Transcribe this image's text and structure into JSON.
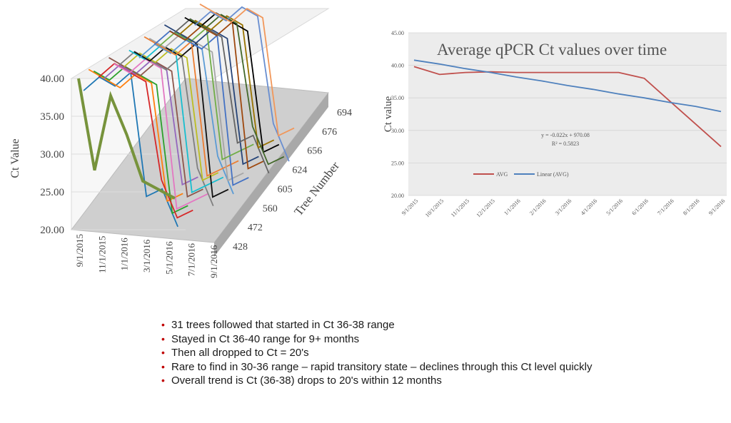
{
  "chart_data": [
    {
      "type": "line",
      "title": "",
      "ylabel": "Ct Value",
      "zlabel": "Tree Number",
      "ylim": [
        20,
        40
      ],
      "y_ticks": [
        "40.00",
        "35.00",
        "30.00",
        "25.00",
        "20.00"
      ],
      "x_ticks": [
        "9/1/2015",
        "11/1/2015",
        "1/1/2016",
        "3/1/2016",
        "5/1/2016",
        "7/1/2016",
        "9/1/2016"
      ],
      "tree_ticks": [
        "428",
        "472",
        "560",
        "605",
        "624",
        "656",
        "676",
        "694"
      ],
      "series": [
        {
          "values": [
            40,
            28,
            38,
            33,
            27,
            26,
            25
          ]
        }
      ],
      "series_colors": [
        "#1f77b4",
        "#ff7f0e",
        "#2ca02c",
        "#d62728",
        "#9467bd",
        "#8c564b",
        "#e377c2",
        "#7f7f7f",
        "#bcbd22",
        "#17becf",
        "#111111",
        "#5b9bd5",
        "#ed7d31",
        "#a5a5a5",
        "#4472c4",
        "#70ad47",
        "#264478",
        "#9e480e",
        "#636363",
        "#997300",
        "#000000",
        "#43682b",
        "#698ed0",
        "#f1975a"
      ]
    },
    {
      "type": "line",
      "title": "Average qPCR Ct values over time",
      "ylabel": "Ct value",
      "ylim": [
        20,
        45
      ],
      "y_ticks": [
        "45.00",
        "40.00",
        "35.00",
        "30.00",
        "25.00",
        "20.00"
      ],
      "categories": [
        "9/1/2015",
        "10/1/2015",
        "11/1/2015",
        "12/1/2015",
        "1/1/2016",
        "2/1/2016",
        "3/1/2016",
        "4/1/2016",
        "5/1/2016",
        "6/1/2016",
        "7/1/2016",
        "8/1/2016",
        "9/1/2016"
      ],
      "series": [
        {
          "name": "AVG",
          "color": "#c0504d",
          "values": [
            39.8,
            38.6,
            38.9,
            39.0,
            38.9,
            38.9,
            38.9,
            38.9,
            38.9,
            38.0,
            34.5,
            31.0,
            27.5
          ]
        },
        {
          "name": "Linear (AVG)",
          "color": "#4f81bd",
          "values": [
            40.8,
            40.2,
            39.5,
            38.9,
            38.2,
            37.6,
            36.9,
            36.3,
            35.6,
            35.0,
            34.3,
            33.7,
            32.9
          ]
        }
      ],
      "equation": "y = -0.022x + 970.08",
      "r2": "R² = 0.5823",
      "legend_position": "bottom-left-inside",
      "grid": true
    }
  ],
  "bullets": [
    "31 trees followed that started in Ct 36-38 range",
    "Stayed in Ct 36-40 range for 9+ months",
    "Then all dropped to Ct = 20's",
    "Rare to find in 30-36 range – rapid transitory state – declines through this Ct level quickly",
    "Overall trend is Ct (36-38) drops to 20's within 12 months"
  ]
}
